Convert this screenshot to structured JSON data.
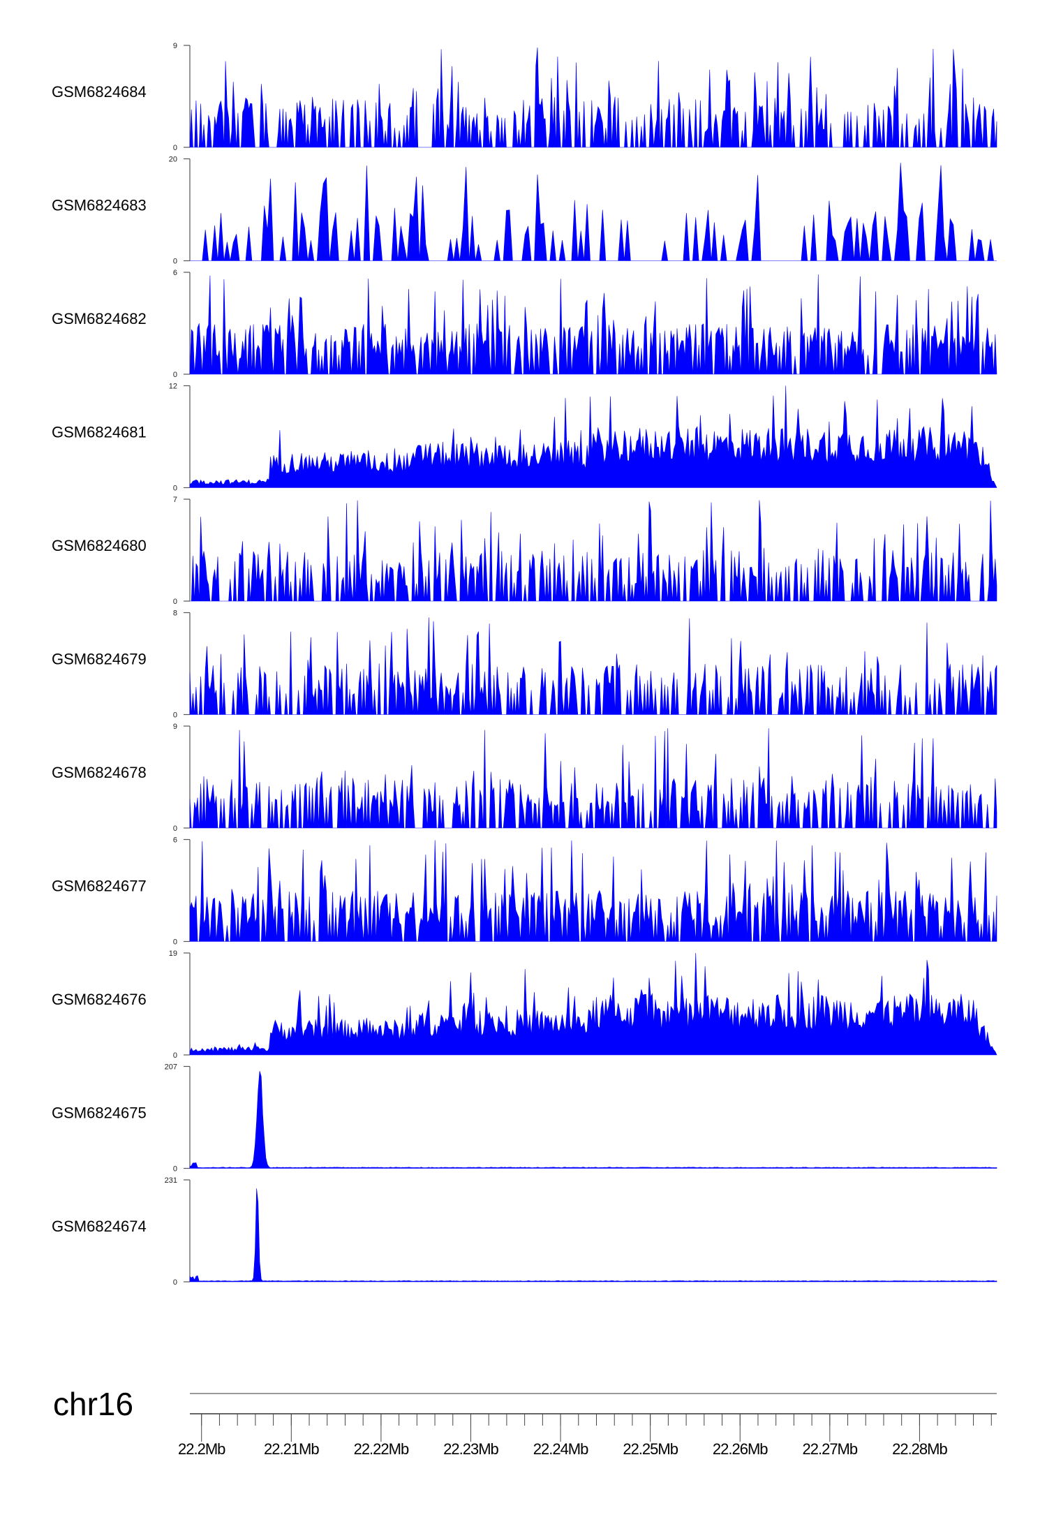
{
  "chart_data": {
    "type": "area",
    "title": "",
    "chromosome": "chr16",
    "xlim_mb": [
      22.1987,
      22.2886
    ],
    "x_ticks": [
      "22.2Mb",
      "22.21Mb",
      "22.22Mb",
      "22.23Mb",
      "22.24Mb",
      "22.25Mb",
      "22.26Mb",
      "22.27Mb",
      "22.28Mb"
    ],
    "x_tick_values": [
      22.2,
      22.21,
      22.22,
      22.23,
      22.24,
      22.25,
      22.26,
      22.27,
      22.28
    ],
    "minor_tick_step_mb": 0.002,
    "fill_color": "#0000FF",
    "series": [
      {
        "name": "GSM6824684",
        "ymin": 0,
        "ymax": 9,
        "profile": "sparse"
      },
      {
        "name": "GSM6824683",
        "ymin": 0,
        "ymax": 20,
        "profile": "very-sparse"
      },
      {
        "name": "GSM6824682",
        "ymin": 0,
        "ymax": 6,
        "profile": "dense"
      },
      {
        "name": "GSM6824681",
        "ymin": 0,
        "ymax": 12,
        "profile": "broad"
      },
      {
        "name": "GSM6824680",
        "ymin": 0,
        "ymax": 7,
        "profile": "sparse"
      },
      {
        "name": "GSM6824679",
        "ymin": 0,
        "ymax": 8,
        "profile": "sparse"
      },
      {
        "name": "GSM6824678",
        "ymin": 0,
        "ymax": 9,
        "profile": "sparse"
      },
      {
        "name": "GSM6824677",
        "ymin": 0,
        "ymax": 6,
        "profile": "dense"
      },
      {
        "name": "GSM6824676",
        "ymin": 0,
        "ymax": 19,
        "profile": "broad"
      },
      {
        "name": "GSM6824675",
        "ymin": 0,
        "ymax": 207,
        "profile": "peak",
        "peak_mb": 22.2065
      },
      {
        "name": "GSM6824674",
        "ymin": 0,
        "ymax": 231,
        "profile": "peak",
        "peak_mb": 22.2062
      }
    ]
  }
}
